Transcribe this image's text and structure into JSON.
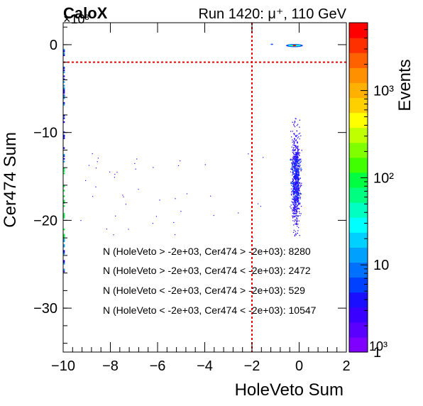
{
  "chart_data": {
    "type": "heatmap",
    "title_left": "CaloX",
    "title_right": "Run 1420: μ⁺, 110 GeV",
    "xlabel": "HoleVeto Sum",
    "ylabel": "Cer474 Sum",
    "zlabel": "Events",
    "y_exponent": "×10³",
    "z_exponent": "10³",
    "xlim": [
      -10,
      2
    ],
    "ylim": [
      -35,
      2.5
    ],
    "x_ticks": [
      -10,
      -8,
      -6,
      -4,
      -2,
      0,
      2
    ],
    "x_tick_labels": [
      "−10",
      "−8",
      "−6",
      "−4",
      "−2",
      "0",
      "2"
    ],
    "y_ticks": [
      0,
      -10,
      -20,
      -30
    ],
    "y_tick_labels": [
      "0",
      "−10",
      "−20",
      "−30"
    ],
    "z_scale": "log",
    "zlim": [
      1,
      6000
    ],
    "z_ticks": [
      1,
      10,
      100,
      1000
    ],
    "z_tick_labels": [
      "1",
      "10",
      "10²",
      "10³"
    ],
    "cut_x": -2,
    "cut_y": -2,
    "palette": [
      "#7f00ff",
      "#5a00ff",
      "#3a00ff",
      "#1a10ff",
      "#0040ff",
      "#0070ff",
      "#00a0ff",
      "#00d0ff",
      "#00ffff",
      "#00ffc0",
      "#00ff80",
      "#00ff40",
      "#40ff00",
      "#80ff00",
      "#c0ff00",
      "#ffff00",
      "#ffd000",
      "#ffb000",
      "#ff9000",
      "#ff6000",
      "#ff3000",
      "#ff0000"
    ],
    "clusters": [
      {
        "name": "pedestal",
        "x": -0.2,
        "y": -0.1,
        "level": "max",
        "color": "#ff0000"
      },
      {
        "name": "signal",
        "x_range": [
          -0.4,
          0.1
        ],
        "y_range": [
          -22,
          -8
        ],
        "peak_y": -15.5,
        "color": "#2000ff"
      }
    ],
    "annotations": [
      "N (HoleVeto > -2e+03, Cer474 > -2e+03): 8280",
      "N (HoleVeto > -2e+03, Cer474 < -2e+03): 2472",
      "N (HoleVeto < -2e+03, Cer474 > -2e+03): 529",
      "N (HoleVeto < -2e+03, Cer474 < -2e+03): 10547"
    ]
  }
}
